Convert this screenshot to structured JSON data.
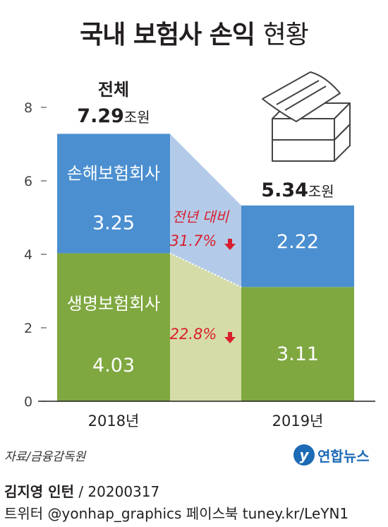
{
  "title": {
    "main": "국내 보험사 손익",
    "sub": "현황"
  },
  "chart_data": {
    "type": "bar",
    "stacked": true,
    "categories": [
      "2018년",
      "2019년"
    ],
    "series": [
      {
        "name": "생명보험회사",
        "values": [
          4.03,
          3.11
        ],
        "labels": [
          "4.03",
          "3.11"
        ],
        "color": "#7fa840"
      },
      {
        "name": "손해보험회사",
        "values": [
          3.25,
          2.22
        ],
        "labels": [
          "3.25",
          "2.22"
        ],
        "color": "#4b8fd1"
      }
    ],
    "totals": [
      {
        "caption": "전체",
        "value": "7.29",
        "unit": "조원"
      },
      {
        "caption": "",
        "value": "5.34",
        "unit": "조원"
      }
    ],
    "changes": [
      {
        "label": "전년 대비",
        "value": "31.7%"
      },
      {
        "label": "",
        "value": "22.8%"
      }
    ],
    "yticks": [
      "0",
      "2",
      "4",
      "6",
      "8"
    ],
    "ylim": [
      0,
      8
    ],
    "colors": {
      "life_band": "#d6dca8",
      "nonlife_band": "#b3cbe8",
      "change_text": "#d91f2f",
      "axis": "#555555"
    }
  },
  "source": "자료/금융감독원",
  "logo": {
    "mark": "y",
    "name": "연합뉴스"
  },
  "credit": {
    "author": "김지영 인턴",
    "date": "/ 20200317"
  },
  "social": "트위터 @yonhap_graphics  페이스북 tuney.kr/LeYN1"
}
